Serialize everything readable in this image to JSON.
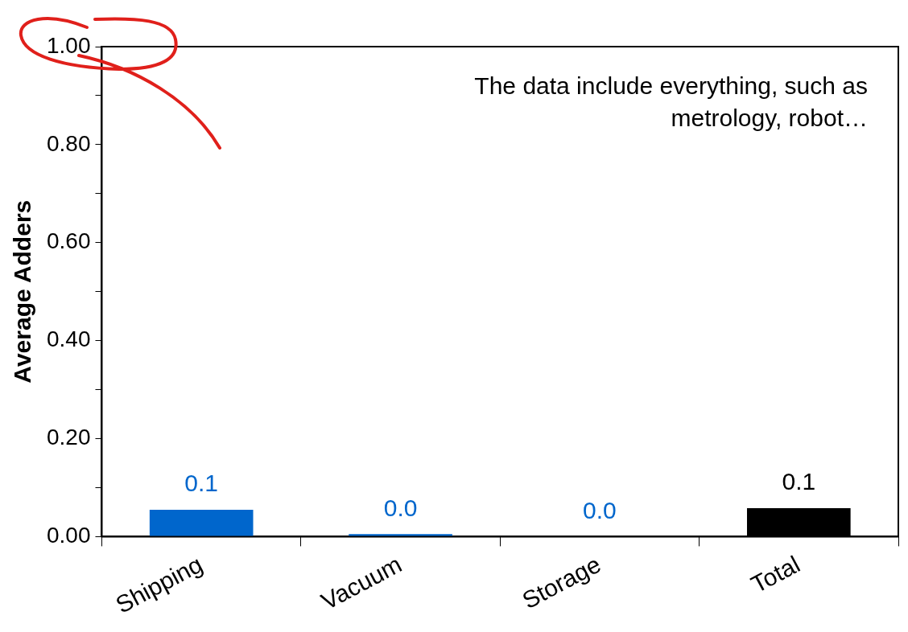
{
  "chart_data": {
    "type": "bar",
    "ylabel": "Average Adders",
    "categories": [
      "Shipping",
      "Vacuum",
      "Storage",
      "Total"
    ],
    "values": [
      0.055,
      0.005,
      0,
      0.058
    ],
    "colors": [
      "#0066cc",
      "#0066cc",
      "#0066cc",
      "#000000"
    ],
    "value_labels": [
      "0.1",
      "0.0",
      "0.0",
      "0.1"
    ],
    "ylim": [
      0,
      1
    ],
    "yticks": [
      {
        "value": 0,
        "label": "0.00"
      },
      {
        "value": 0.1,
        "label": null
      },
      {
        "value": 0.2,
        "label": "0.20"
      },
      {
        "value": 0.3,
        "label": null
      },
      {
        "value": 0.4,
        "label": "0.40"
      },
      {
        "value": 0.5,
        "label": null
      },
      {
        "value": 0.6,
        "label": "0.60"
      },
      {
        "value": 0.7,
        "label": null
      },
      {
        "value": 0.8,
        "label": "0.80"
      },
      {
        "value": 0.9,
        "label": null
      },
      {
        "value": 1,
        "label": "1.00"
      }
    ],
    "annotations": [
      "The data include everything, such as metrology, robot…"
    ],
    "grid": false,
    "legend": false
  }
}
